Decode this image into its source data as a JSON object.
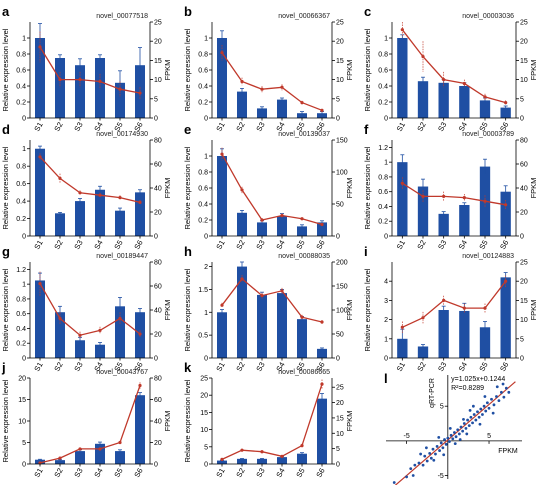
{
  "figure": {
    "bar_color": "#1f4fa3",
    "line_color": "#c0392b",
    "axis_color": "#000000"
  },
  "chart_data": [
    {
      "id": "a",
      "letter": "a",
      "gene": "novel_00077518",
      "type": "bar+line",
      "categories": [
        "S1",
        "S2",
        "S3",
        "S4",
        "S5",
        "S6"
      ],
      "bars": [
        1.0,
        0.75,
        0.66,
        0.75,
        0.44,
        0.66
      ],
      "bar_err": [
        0.18,
        0.04,
        0.08,
        0.04,
        0.15,
        0.22
      ],
      "line": [
        18.5,
        10.0,
        10.0,
        9.5,
        7.5,
        6.5
      ],
      "line_err": [
        4,
        2,
        2,
        2,
        2,
        1.5
      ],
      "ylabel": "Relative expression level",
      "y2label": "FPKM",
      "yticks": [
        0,
        0.2,
        0.4,
        0.6,
        0.8,
        1.0
      ],
      "ylim": [
        0,
        1.2
      ],
      "y2ticks": [
        0,
        5,
        10,
        15,
        20,
        25
      ],
      "y2lim": [
        0,
        25
      ]
    },
    {
      "id": "b",
      "letter": "b",
      "gene": "novel_00066367",
      "type": "bar+line",
      "categories": [
        "S1",
        "S2",
        "S3",
        "S4",
        "S5",
        "S6"
      ],
      "bars": [
        1.0,
        0.33,
        0.12,
        0.23,
        0.06,
        0.06
      ],
      "bar_err": [
        0.09,
        0.04,
        0.02,
        0.02,
        0.02,
        0.02
      ],
      "line": [
        17.0,
        9.5,
        7.5,
        8.0,
        4.0,
        2.0
      ],
      "line_err": [
        2,
        1,
        0.8,
        0.8,
        0.5,
        0.4
      ],
      "ylabel": "Relative expression level",
      "y2label": "FPKM",
      "yticks": [
        0,
        0.2,
        0.4,
        0.6,
        0.8,
        1.0
      ],
      "ylim": [
        0,
        1.2
      ],
      "y2ticks": [
        0,
        5,
        10,
        15,
        20,
        25
      ],
      "y2lim": [
        0,
        25
      ]
    },
    {
      "id": "c",
      "letter": "c",
      "gene": "novel_00003036",
      "type": "bar+line",
      "categories": [
        "S1",
        "S2",
        "S3",
        "S4",
        "S5",
        "S6"
      ],
      "bars": [
        1.0,
        0.46,
        0.44,
        0.4,
        0.22,
        0.13
      ],
      "bar_err": [
        0.04,
        0.05,
        0.04,
        0.04,
        0.03,
        0.02
      ],
      "line": [
        23.0,
        16.0,
        10.0,
        9.0,
        5.5,
        4.0
      ],
      "line_err": [
        2,
        4,
        2,
        1,
        0.8,
        0.6
      ],
      "ylabel": "Relative expression level",
      "y2label": "FPKM",
      "yticks": [
        0,
        0.2,
        0.4,
        0.6,
        0.8,
        1.0
      ],
      "ylim": [
        0,
        1.2
      ],
      "y2ticks": [
        0,
        5,
        10,
        15,
        20,
        25
      ],
      "y2lim": [
        0,
        25
      ]
    },
    {
      "id": "d",
      "letter": "d",
      "gene": "novel_00174930",
      "type": "bar+line",
      "categories": [
        "S1",
        "S2",
        "S3",
        "S4",
        "S5",
        "S6"
      ],
      "bars": [
        1.0,
        0.26,
        0.4,
        0.53,
        0.29,
        0.5
      ],
      "bar_err": [
        0.03,
        0.01,
        0.03,
        0.04,
        0.03,
        0.03
      ],
      "line": [
        66,
        48,
        36,
        34,
        32,
        28
      ],
      "line_err": [
        3,
        4,
        2,
        2,
        2,
        2
      ],
      "ylabel": "Relative expression level",
      "y2label": "FPKM",
      "yticks": [
        0,
        0.2,
        0.4,
        0.6,
        0.8,
        1.0
      ],
      "ylim": [
        0,
        1.1
      ],
      "y2ticks": [
        0,
        20,
        40,
        60,
        80
      ],
      "y2lim": [
        0,
        80
      ]
    },
    {
      "id": "e",
      "letter": "e",
      "gene": "novel_00139037",
      "type": "bar+line",
      "categories": [
        "S1",
        "S2",
        "S3",
        "S4",
        "S5",
        "S6"
      ],
      "bars": [
        1.0,
        0.29,
        0.17,
        0.25,
        0.12,
        0.17
      ],
      "bar_err": [
        0.09,
        0.03,
        0.02,
        0.03,
        0.02,
        0.02
      ],
      "line": [
        128,
        72,
        25,
        32,
        27,
        18
      ],
      "line_err": [
        10,
        5,
        3,
        3,
        2,
        2
      ],
      "ylabel": "Relative expression level",
      "y2label": "FPKM",
      "yticks": [
        0,
        0.2,
        0.4,
        0.6,
        0.8,
        1.0
      ],
      "ylim": [
        0,
        1.2
      ],
      "y2ticks": [
        0,
        50,
        100,
        150
      ],
      "y2lim": [
        0,
        150
      ]
    },
    {
      "id": "f",
      "letter": "f",
      "gene": "novel_00003789",
      "type": "bar+line",
      "categories": [
        "S1",
        "S2",
        "S3",
        "S4",
        "S5",
        "S6"
      ],
      "bars": [
        1.0,
        0.67,
        0.3,
        0.42,
        0.94,
        0.6
      ],
      "bar_err": [
        0.1,
        0.1,
        0.03,
        0.03,
        0.1,
        0.08
      ],
      "line": [
        44,
        33,
        33,
        32,
        29,
        26
      ],
      "line_err": [
        5,
        5,
        4,
        3,
        5,
        4
      ],
      "ylabel": "Relative expression level",
      "y2label": "FPKM",
      "yticks": [
        0,
        0.2,
        0.4,
        0.6,
        0.8,
        1.0,
        1.2
      ],
      "ylim": [
        0,
        1.3
      ],
      "y2ticks": [
        0,
        20,
        40,
        60,
        80
      ],
      "y2lim": [
        0,
        80
      ]
    },
    {
      "id": "g",
      "letter": "g",
      "gene": "novel_00189447",
      "type": "bar+line",
      "categories": [
        "S1",
        "S2",
        "S3",
        "S4",
        "S5",
        "S6"
      ],
      "bars": [
        1.05,
        0.62,
        0.24,
        0.18,
        0.7,
        0.62
      ],
      "bar_err": [
        0.1,
        0.08,
        0.04,
        0.03,
        0.12,
        0.05
      ],
      "line": [
        62,
        33,
        19,
        23,
        33,
        20
      ],
      "line_err": [
        10,
        5,
        3,
        3,
        5,
        3
      ],
      "ylabel": "Relative expression level",
      "y2label": "FPKM",
      "yticks": [
        0,
        0.2,
        0.4,
        0.6,
        0.8,
        1.0,
        1.2
      ],
      "ylim": [
        0,
        1.3
      ],
      "y2ticks": [
        0,
        20,
        40,
        60,
        80
      ],
      "y2lim": [
        0,
        80
      ]
    },
    {
      "id": "h",
      "letter": "h",
      "gene": "novel_00088035",
      "type": "bar+line",
      "categories": [
        "S1",
        "S2",
        "S3",
        "S4",
        "S5",
        "S6"
      ],
      "bars": [
        1.0,
        2.0,
        1.38,
        1.42,
        0.85,
        0.2
      ],
      "bar_err": [
        0.06,
        0.1,
        0.06,
        0.08,
        0.06,
        0.02
      ],
      "line": [
        110,
        165,
        130,
        140,
        85,
        75
      ],
      "line_err": [
        5,
        8,
        6,
        6,
        5,
        4
      ],
      "ylabel": "Relative expression level",
      "y2label": "FPKM",
      "yticks": [
        0,
        0.5,
        1.0,
        1.5,
        2.0
      ],
      "ylim": [
        0,
        2.1
      ],
      "y2ticks": [
        0,
        50,
        100,
        150,
        200
      ],
      "y2lim": [
        0,
        200
      ]
    },
    {
      "id": "i",
      "letter": "i",
      "gene": "novel_00124883",
      "type": "bar+line",
      "categories": [
        "S1",
        "S2",
        "S3",
        "S4",
        "S5",
        "S6"
      ],
      "bars": [
        1.0,
        0.6,
        2.5,
        2.45,
        1.6,
        4.2
      ],
      "bar_err": [
        0.5,
        0.1,
        0.2,
        0.4,
        0.3,
        0.25
      ],
      "line": [
        8.0,
        10.5,
        15.0,
        13.0,
        13.0,
        20.0
      ],
      "line_err": [
        1.5,
        1.5,
        1.2,
        1.2,
        1.2,
        1.5
      ],
      "ylabel": "Relative expression level",
      "y2label": "FPKM",
      "yticks": [
        0,
        1,
        2,
        3,
        4
      ],
      "ylim": [
        0,
        5
      ],
      "y2ticks": [
        0,
        5,
        10,
        15,
        20,
        25
      ],
      "y2lim": [
        0,
        25
      ]
    },
    {
      "id": "j",
      "letter": "j",
      "gene": "novel_00043767",
      "type": "bar+line",
      "categories": [
        "S1",
        "S2",
        "S3",
        "S4",
        "S5",
        "S6"
      ],
      "bars": [
        1.0,
        0.9,
        3.0,
        4.7,
        3.0,
        16.0
      ],
      "bar_err": [
        0.1,
        0.1,
        0.3,
        0.4,
        0.3,
        0.6
      ],
      "line": [
        1.0,
        5.5,
        14.0,
        14.0,
        20.0,
        73.0
      ],
      "line_err": [
        0.5,
        0.8,
        1,
        1.5,
        1.5,
        3
      ],
      "ylabel": "Relative expression level",
      "y2label": "FPKM",
      "yticks": [
        0,
        5,
        10,
        15,
        20
      ],
      "ylim": [
        0,
        20
      ],
      "y2ticks": [
        0,
        20,
        40,
        60,
        80
      ],
      "y2lim": [
        0,
        80
      ]
    },
    {
      "id": "k",
      "letter": "k",
      "gene": "novel_00086665",
      "type": "bar+line",
      "categories": [
        "S1",
        "S2",
        "S3",
        "S4",
        "S5",
        "S6"
      ],
      "bars": [
        1.0,
        1.5,
        1.5,
        2.0,
        3.0,
        19.0
      ],
      "bar_err": [
        0.1,
        0.1,
        0.1,
        0.2,
        0.3,
        1.5
      ],
      "line": [
        1.5,
        4.5,
        4.0,
        2.5,
        6.0,
        26.0
      ],
      "line_err": [
        0.3,
        0.5,
        0.5,
        0.4,
        0.6,
        1.5
      ],
      "ylabel": "Relative expression level",
      "y2label": "FPKM",
      "yticks": [
        0,
        5,
        10,
        15,
        20,
        25
      ],
      "ylim": [
        0,
        25
      ],
      "y2ticks": [
        0,
        5,
        10,
        15,
        20,
        25
      ],
      "y2lim": [
        0,
        28
      ]
    },
    {
      "id": "l",
      "letter": "l",
      "type": "scatter",
      "xlabel": "FPKM",
      "ylabel": "qRT-PCR",
      "equation": "y=1.025x+0.1244",
      "r2": "R²=0.8289",
      "xticks": [
        -5,
        5
      ],
      "yticks": [
        -5,
        5
      ],
      "xlim": [
        -7.5,
        9
      ],
      "ylim": [
        -5.5,
        9.5
      ],
      "fit": {
        "slope": 1.025,
        "intercept": 0.1244
      },
      "points": [
        [
          -6.5,
          -6
        ],
        [
          -5,
          -5.2
        ],
        [
          -4.5,
          -4
        ],
        [
          -4,
          -3.5
        ],
        [
          -3.5,
          -3.2
        ],
        [
          -3,
          -3.5
        ],
        [
          -2.8,
          -2.2
        ],
        [
          -2.5,
          -2.9
        ],
        [
          -2.2,
          -1.8
        ],
        [
          -2,
          -2.5
        ],
        [
          -1.8,
          -1.2
        ],
        [
          -1.5,
          -1.9
        ],
        [
          -1.3,
          -0.8
        ],
        [
          -1,
          -1.4
        ],
        [
          -0.8,
          -0.3
        ],
        [
          -0.6,
          -1
        ],
        [
          -0.4,
          0.2
        ],
        [
          -0.2,
          -0.5
        ],
        [
          0,
          0.4
        ],
        [
          0.2,
          -0.1
        ],
        [
          0.4,
          0.8
        ],
        [
          0.6,
          0.3
        ],
        [
          0.8,
          1.2
        ],
        [
          1,
          0.6
        ],
        [
          1.2,
          1.6
        ],
        [
          1.4,
          1
        ],
        [
          1.6,
          2
        ],
        [
          1.8,
          1.4
        ],
        [
          2,
          2.5
        ],
        [
          2.2,
          1.8
        ],
        [
          2.4,
          3
        ],
        [
          2.6,
          2.2
        ],
        [
          2.8,
          3.4
        ],
        [
          3,
          2.6
        ],
        [
          3.2,
          3.8
        ],
        [
          3.4,
          3
        ],
        [
          3.6,
          4.2
        ],
        [
          3.8,
          3.4
        ],
        [
          4,
          4.6
        ],
        [
          4.2,
          3.8
        ],
        [
          4.4,
          5
        ],
        [
          4.6,
          4.3
        ],
        [
          4.8,
          5.5
        ],
        [
          5,
          4.7
        ],
        [
          5.3,
          6
        ],
        [
          5.6,
          5.2
        ],
        [
          5.9,
          6.4
        ],
        [
          6.2,
          5.8
        ],
        [
          6.5,
          7
        ],
        [
          6.8,
          6.3
        ],
        [
          7.1,
          7.6
        ],
        [
          7.4,
          7
        ],
        [
          -1.1,
          0.5
        ],
        [
          0.3,
          1.8
        ],
        [
          1.5,
          0.2
        ],
        [
          2.7,
          4.4
        ],
        [
          3.9,
          2.4
        ],
        [
          -2.6,
          -1
        ],
        [
          -0.5,
          -2
        ],
        [
          4.5,
          6.4
        ],
        [
          6,
          7.8
        ],
        [
          1.9,
          3.1
        ],
        [
          -3.3,
          -1.9
        ],
        [
          0.9,
          -0.4
        ],
        [
          5.5,
          4
        ],
        [
          3.1,
          5
        ],
        [
          -1.7,
          -2.8
        ],
        [
          2.3,
          1
        ],
        [
          6.7,
          8.2
        ],
        [
          -4.2,
          -5
        ]
      ]
    }
  ]
}
